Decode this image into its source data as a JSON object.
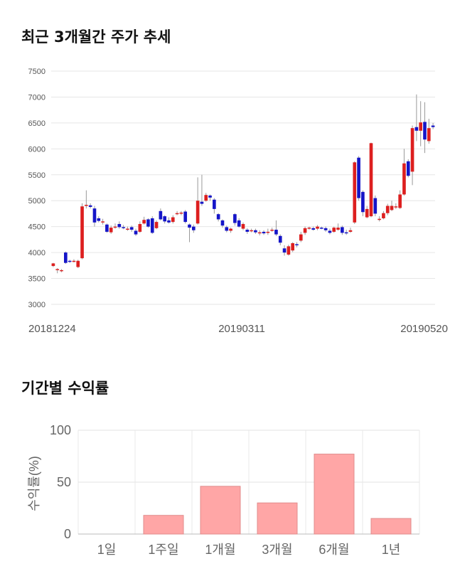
{
  "titles": {
    "price_trend": "최근 3개월간 주가 추세",
    "period_return": "기간별 수익률"
  },
  "colors": {
    "up": "#dd1f1f",
    "down": "#1515c8",
    "bar": "#ffa6a6"
  },
  "chart_data": [
    {
      "type": "candlestick",
      "title": "최근 3개월간 주가 추세",
      "ylim": [
        3000,
        7500
      ],
      "yticks": [
        3000,
        3500,
        4000,
        4500,
        5000,
        5500,
        6000,
        6500,
        7000,
        7500
      ],
      "date_labels": [
        "20181224",
        "20190311",
        "20190520"
      ],
      "grid": true,
      "candles": [
        [
          3740,
          3790,
          3720,
          3800
        ],
        [
          3660,
          3680,
          3600,
          3700
        ],
        [
          3640,
          3660,
          3620,
          3680
        ],
        [
          4000,
          3800,
          3780,
          4020
        ],
        [
          3840,
          3820,
          3800,
          3860
        ],
        [
          3830,
          3840,
          3810,
          3870
        ],
        [
          3720,
          3840,
          3700,
          3860
        ],
        [
          3890,
          4890,
          3870,
          4950
        ],
        [
          4900,
          4920,
          4850,
          5200
        ],
        [
          4910,
          4880,
          4850,
          4950
        ],
        [
          4850,
          4580,
          4500,
          4900
        ],
        [
          4660,
          4610,
          4580,
          4700
        ],
        [
          4600,
          4600,
          4540,
          4650
        ],
        [
          4540,
          4400,
          4380,
          4560
        ],
        [
          4390,
          4480,
          4360,
          4520
        ],
        [
          4490,
          4500,
          4460,
          4560
        ],
        [
          4550,
          4490,
          4460,
          4600
        ],
        [
          4490,
          4480,
          4450,
          4530
        ],
        [
          4460,
          4460,
          4420,
          4500
        ],
        [
          4490,
          4440,
          4400,
          4520
        ],
        [
          4420,
          4350,
          4320,
          4460
        ],
        [
          4400,
          4550,
          4380,
          4600
        ],
        [
          4560,
          4630,
          4540,
          4690
        ],
        [
          4640,
          4500,
          4480,
          4660
        ],
        [
          4660,
          4380,
          4360,
          4700
        ],
        [
          4470,
          4590,
          4450,
          4620
        ],
        [
          4800,
          4640,
          4620,
          4850
        ],
        [
          4700,
          4600,
          4560,
          4720
        ],
        [
          4620,
          4580,
          4560,
          4680
        ],
        [
          4590,
          4680,
          4560,
          4720
        ],
        [
          4740,
          4760,
          4720,
          4800
        ],
        [
          4760,
          4770,
          4720,
          4800
        ],
        [
          4790,
          4590,
          4560,
          4820
        ],
        [
          4540,
          4480,
          4200,
          4560
        ],
        [
          4500,
          4430,
          4380,
          4540
        ],
        [
          4560,
          5000,
          4540,
          5450
        ],
        [
          4980,
          4940,
          4900,
          5500
        ],
        [
          5000,
          5110,
          4980,
          5150
        ],
        [
          5100,
          5060,
          5000,
          5120
        ],
        [
          5020,
          4840,
          4750,
          5050
        ],
        [
          4740,
          4640,
          4600,
          4760
        ],
        [
          4620,
          4520,
          4480,
          4640
        ],
        [
          4490,
          4420,
          4390,
          4520
        ],
        [
          4420,
          4460,
          4380,
          4480
        ],
        [
          4740,
          4570,
          4520,
          4760
        ],
        [
          4620,
          4500,
          4480,
          4660
        ],
        [
          4460,
          4550,
          4430,
          4580
        ],
        [
          4440,
          4400,
          4360,
          4470
        ],
        [
          4410,
          4430,
          4390,
          4460
        ],
        [
          4430,
          4390,
          4360,
          4460
        ],
        [
          4370,
          4390,
          4330,
          4430
        ],
        [
          4400,
          4370,
          4340,
          4430
        ],
        [
          4380,
          4400,
          4340,
          4460
        ],
        [
          4430,
          4440,
          4400,
          4480
        ],
        [
          4440,
          4350,
          4320,
          4620
        ],
        [
          4320,
          4190,
          4140,
          4350
        ],
        [
          4080,
          4000,
          3940,
          4140
        ],
        [
          3960,
          4120,
          3940,
          4150
        ],
        [
          4040,
          4180,
          4010,
          4200
        ],
        [
          4160,
          4140,
          4100,
          4200
        ],
        [
          4230,
          4350,
          4200,
          4400
        ],
        [
          4380,
          4470,
          4340,
          4500
        ],
        [
          4470,
          4480,
          4440,
          4500
        ],
        [
          4470,
          4440,
          4420,
          4500
        ],
        [
          4460,
          4500,
          4430,
          4530
        ],
        [
          4480,
          4470,
          4450,
          4500
        ],
        [
          4470,
          4430,
          4400,
          4500
        ],
        [
          4420,
          4380,
          4350,
          4460
        ],
        [
          4400,
          4480,
          4380,
          4500
        ],
        [
          4440,
          4480,
          4420,
          4560
        ],
        [
          4490,
          4380,
          4340,
          4520
        ],
        [
          4390,
          4380,
          4340,
          4440
        ],
        [
          4400,
          4430,
          4380,
          4480
        ],
        [
          4580,
          5740,
          4550,
          5760
        ],
        [
          5830,
          5050,
          5000,
          5860
        ],
        [
          5170,
          4780,
          4700,
          5200
        ],
        [
          4680,
          4840,
          4660,
          4900
        ],
        [
          4700,
          6110,
          4680,
          6120
        ],
        [
          5050,
          4750,
          4700,
          5100
        ],
        [
          4650,
          4650,
          4600,
          4700
        ],
        [
          4660,
          4760,
          4640,
          4800
        ],
        [
          4760,
          4900,
          4720,
          4940
        ],
        [
          4820,
          4900,
          4800,
          5000
        ],
        [
          4880,
          4890,
          4840,
          4950
        ],
        [
          4860,
          5120,
          4840,
          5200
        ],
        [
          5120,
          5720,
          5100,
          6000
        ],
        [
          5760,
          5480,
          5450,
          5800
        ],
        [
          5560,
          6400,
          5300,
          6450
        ],
        [
          6420,
          6350,
          6150,
          7050
        ],
        [
          6350,
          6510,
          6050,
          6920
        ],
        [
          6520,
          6180,
          5920,
          6900
        ],
        [
          6150,
          6400,
          6100,
          6580
        ],
        [
          6450,
          6420,
          6380,
          6500
        ]
      ]
    },
    {
      "type": "bar",
      "title": "기간별 수익률",
      "categories": [
        "1일",
        "1주일",
        "1개월",
        "3개월",
        "6개월",
        "1년"
      ],
      "values": [
        0,
        18,
        46,
        30,
        77,
        15
      ],
      "ylabel": "수익률(%)",
      "ylim": [
        0,
        100
      ],
      "yticks": [
        0,
        50,
        100
      ],
      "grid": true
    }
  ]
}
